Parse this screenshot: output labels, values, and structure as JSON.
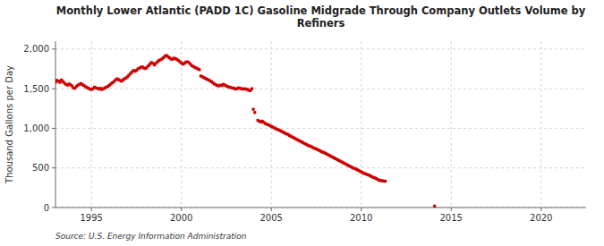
{
  "chart_data": {
    "type": "scatter",
    "title": "Monthly Lower Atlantic (PADD 1C) Gasoline Midgrade Through Company Outlets Volume by\nRefiners",
    "y_label": "Thousand Gallons per Day",
    "annotations": [
      "Source: U.S. Energy Information Administration"
    ],
    "color": "#cc0000",
    "marker": "square",
    "grid": true,
    "xlim": [
      1993.0,
      2022.5
    ],
    "ylim": [
      0,
      2100
    ],
    "xticks": [
      1995,
      2000,
      2005,
      2010,
      2015,
      2020
    ],
    "yticks": [
      0,
      500,
      {
        "value": 1000,
        "label": "1,000"
      },
      {
        "value": 1500,
        "label": "1,500"
      },
      {
        "value": 2000,
        "label": "2,000"
      }
    ],
    "x": [
      1993.0,
      1993.08,
      1993.17,
      1993.25,
      1993.33,
      1993.42,
      1993.5,
      1993.58,
      1993.67,
      1993.75,
      1993.83,
      1993.92,
      1994.0,
      1994.08,
      1994.17,
      1994.25,
      1994.33,
      1994.42,
      1994.5,
      1994.58,
      1994.67,
      1994.75,
      1994.83,
      1994.92,
      1995.0,
      1995.08,
      1995.17,
      1995.25,
      1995.33,
      1995.42,
      1995.5,
      1995.58,
      1995.67,
      1995.75,
      1995.83,
      1995.92,
      1996.0,
      1996.08,
      1996.17,
      1996.25,
      1996.33,
      1996.42,
      1996.5,
      1996.58,
      1996.67,
      1996.75,
      1996.83,
      1996.92,
      1997.0,
      1997.08,
      1997.17,
      1997.25,
      1997.33,
      1997.42,
      1997.5,
      1997.58,
      1997.67,
      1997.75,
      1997.83,
      1997.92,
      1998.0,
      1998.08,
      1998.17,
      1998.25,
      1998.33,
      1998.42,
      1998.5,
      1998.58,
      1998.67,
      1998.75,
      1998.83,
      1998.92,
      1999.0,
      1999.08,
      1999.17,
      1999.25,
      1999.33,
      1999.42,
      1999.5,
      1999.58,
      1999.67,
      1999.75,
      1999.83,
      1999.92,
      2000.0,
      2000.08,
      2000.17,
      2000.25,
      2000.33,
      2000.42,
      2000.5,
      2000.58,
      2000.67,
      2000.75,
      2000.83,
      2000.92,
      2001.0,
      2001.08,
      2001.17,
      2001.25,
      2001.33,
      2001.42,
      2001.5,
      2001.58,
      2001.67,
      2001.75,
      2001.83,
      2001.92,
      2002.0,
      2002.08,
      2002.17,
      2002.25,
      2002.33,
      2002.42,
      2002.5,
      2002.58,
      2002.67,
      2002.75,
      2002.83,
      2002.92,
      2003.0,
      2003.08,
      2003.17,
      2003.25,
      2003.33,
      2003.42,
      2003.5,
      2003.58,
      2003.67,
      2003.75,
      2003.83,
      2003.92,
      2004.0,
      2004.08,
      2004.25,
      2004.33,
      2004.42,
      2004.5,
      2004.58,
      2004.67,
      2004.75,
      2004.83,
      2004.92,
      2005.0,
      2005.08,
      2005.17,
      2005.25,
      2005.33,
      2005.42,
      2005.5,
      2005.58,
      2005.67,
      2005.75,
      2005.83,
      2005.92,
      2006.0,
      2006.08,
      2006.17,
      2006.25,
      2006.33,
      2006.42,
      2006.5,
      2006.58,
      2006.67,
      2006.75,
      2006.83,
      2006.92,
      2007.0,
      2007.08,
      2007.17,
      2007.25,
      2007.33,
      2007.42,
      2007.5,
      2007.58,
      2007.67,
      2007.75,
      2007.83,
      2007.92,
      2008.0,
      2008.08,
      2008.17,
      2008.25,
      2008.33,
      2008.42,
      2008.5,
      2008.58,
      2008.67,
      2008.75,
      2008.83,
      2008.92,
      2009.0,
      2009.08,
      2009.17,
      2009.25,
      2009.33,
      2009.42,
      2009.5,
      2009.58,
      2009.67,
      2009.75,
      2009.83,
      2009.92,
      2010.0,
      2010.08,
      2010.17,
      2010.25,
      2010.33,
      2010.42,
      2010.5,
      2010.58,
      2010.67,
      2010.75,
      2010.83,
      2010.92,
      2011.0,
      2011.08,
      2011.17,
      2011.25,
      2011.33,
      2014.08
    ],
    "values": [
      1580,
      1605,
      1595,
      1580,
      1610,
      1590,
      1570,
      1555,
      1545,
      1560,
      1550,
      1535,
      1510,
      1505,
      1530,
      1545,
      1555,
      1565,
      1550,
      1540,
      1525,
      1515,
      1505,
      1495,
      1490,
      1500,
      1520,
      1510,
      1505,
      1495,
      1505,
      1490,
      1500,
      1510,
      1520,
      1530,
      1545,
      1560,
      1575,
      1590,
      1610,
      1625,
      1615,
      1605,
      1595,
      1610,
      1625,
      1635,
      1650,
      1670,
      1690,
      1710,
      1730,
      1720,
      1730,
      1750,
      1760,
      1770,
      1775,
      1760,
      1755,
      1770,
      1790,
      1810,
      1830,
      1820,
      1800,
      1820,
      1840,
      1855,
      1865,
      1875,
      1890,
      1910,
      1920,
      1905,
      1890,
      1875,
      1870,
      1885,
      1880,
      1870,
      1855,
      1840,
      1825,
      1810,
      1820,
      1835,
      1840,
      1830,
      1810,
      1790,
      1780,
      1770,
      1760,
      1750,
      1740,
      1660,
      1650,
      1640,
      1630,
      1620,
      1610,
      1600,
      1590,
      1575,
      1560,
      1550,
      1540,
      1535,
      1545,
      1540,
      1555,
      1545,
      1535,
      1525,
      1520,
      1515,
      1510,
      1505,
      1495,
      1500,
      1510,
      1505,
      1500,
      1495,
      1500,
      1495,
      1490,
      1480,
      1475,
      1500,
      1240,
      1200,
      1100,
      1090,
      1080,
      1090,
      1075,
      1060,
      1050,
      1045,
      1035,
      1025,
      1015,
      1005,
      995,
      985,
      980,
      970,
      960,
      950,
      940,
      930,
      925,
      910,
      900,
      890,
      880,
      870,
      860,
      850,
      840,
      830,
      820,
      810,
      800,
      790,
      780,
      775,
      765,
      755,
      745,
      740,
      730,
      720,
      710,
      700,
      695,
      685,
      675,
      665,
      655,
      645,
      635,
      625,
      615,
      605,
      595,
      585,
      575,
      565,
      555,
      545,
      535,
      525,
      515,
      505,
      495,
      490,
      480,
      470,
      460,
      450,
      440,
      430,
      425,
      415,
      410,
      400,
      390,
      380,
      375,
      365,
      355,
      345,
      340,
      338,
      335,
      332,
      18
    ]
  }
}
